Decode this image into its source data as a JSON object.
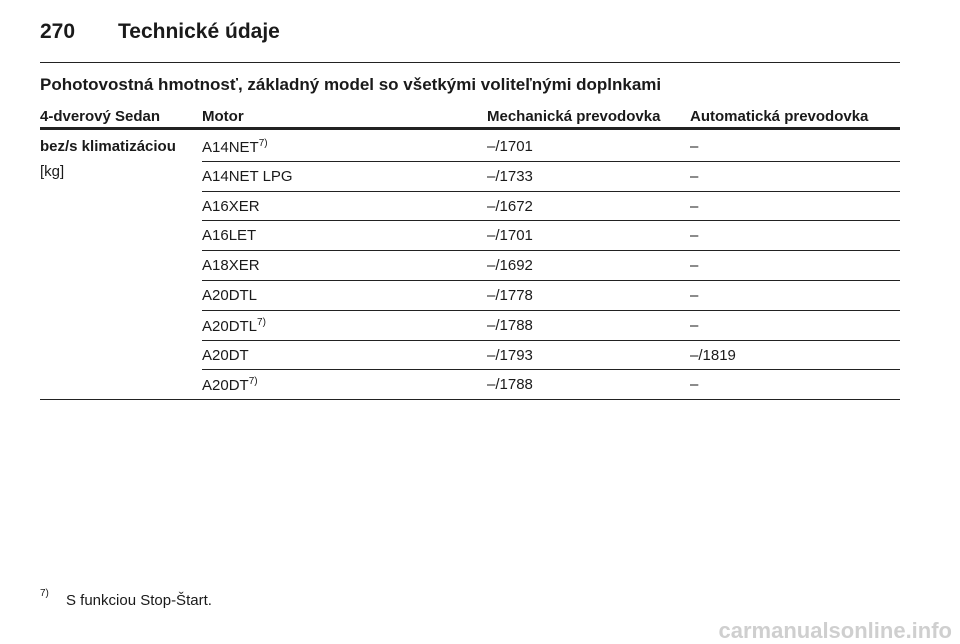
{
  "header": {
    "page_number": "270",
    "title": "Technické údaje"
  },
  "section_title": "Pohotovostná hmotnosť, základný model so všetkými voliteľnými doplnkami",
  "table": {
    "columns": [
      "4-dverový Sedan",
      "Motor",
      "Mechanická prevodovka",
      "Automatická prevodovka"
    ],
    "group": {
      "label": "bez/s klimatizáciou",
      "unit": "[kg]"
    },
    "rows": [
      {
        "motor": "A14NET",
        "note": "7)",
        "manual": "–/1701",
        "automatic": "–"
      },
      {
        "motor": "A14NET LPG",
        "manual": "–/1733",
        "automatic": "–"
      },
      {
        "motor": "A16XER",
        "manual": "–/1672",
        "automatic": "–"
      },
      {
        "motor": "A16LET",
        "manual": "–/1701",
        "automatic": "–"
      },
      {
        "motor": "A18XER",
        "manual": "–/1692",
        "automatic": "–"
      },
      {
        "motor": "A20DTL",
        "manual": "–/1778",
        "automatic": "–"
      },
      {
        "motor": "A20DTL",
        "note": "7)",
        "manual": "–/1788",
        "automatic": "–"
      },
      {
        "motor": "A20DT",
        "manual": "–/1793",
        "automatic": "–/1819"
      },
      {
        "motor": "A20DT",
        "note": "7)",
        "manual": "–/1788",
        "automatic": "–"
      }
    ]
  },
  "footnote": {
    "mark": "7)",
    "text": "S funkciou Stop-Štart."
  },
  "watermark": "carmanualsonline.info"
}
